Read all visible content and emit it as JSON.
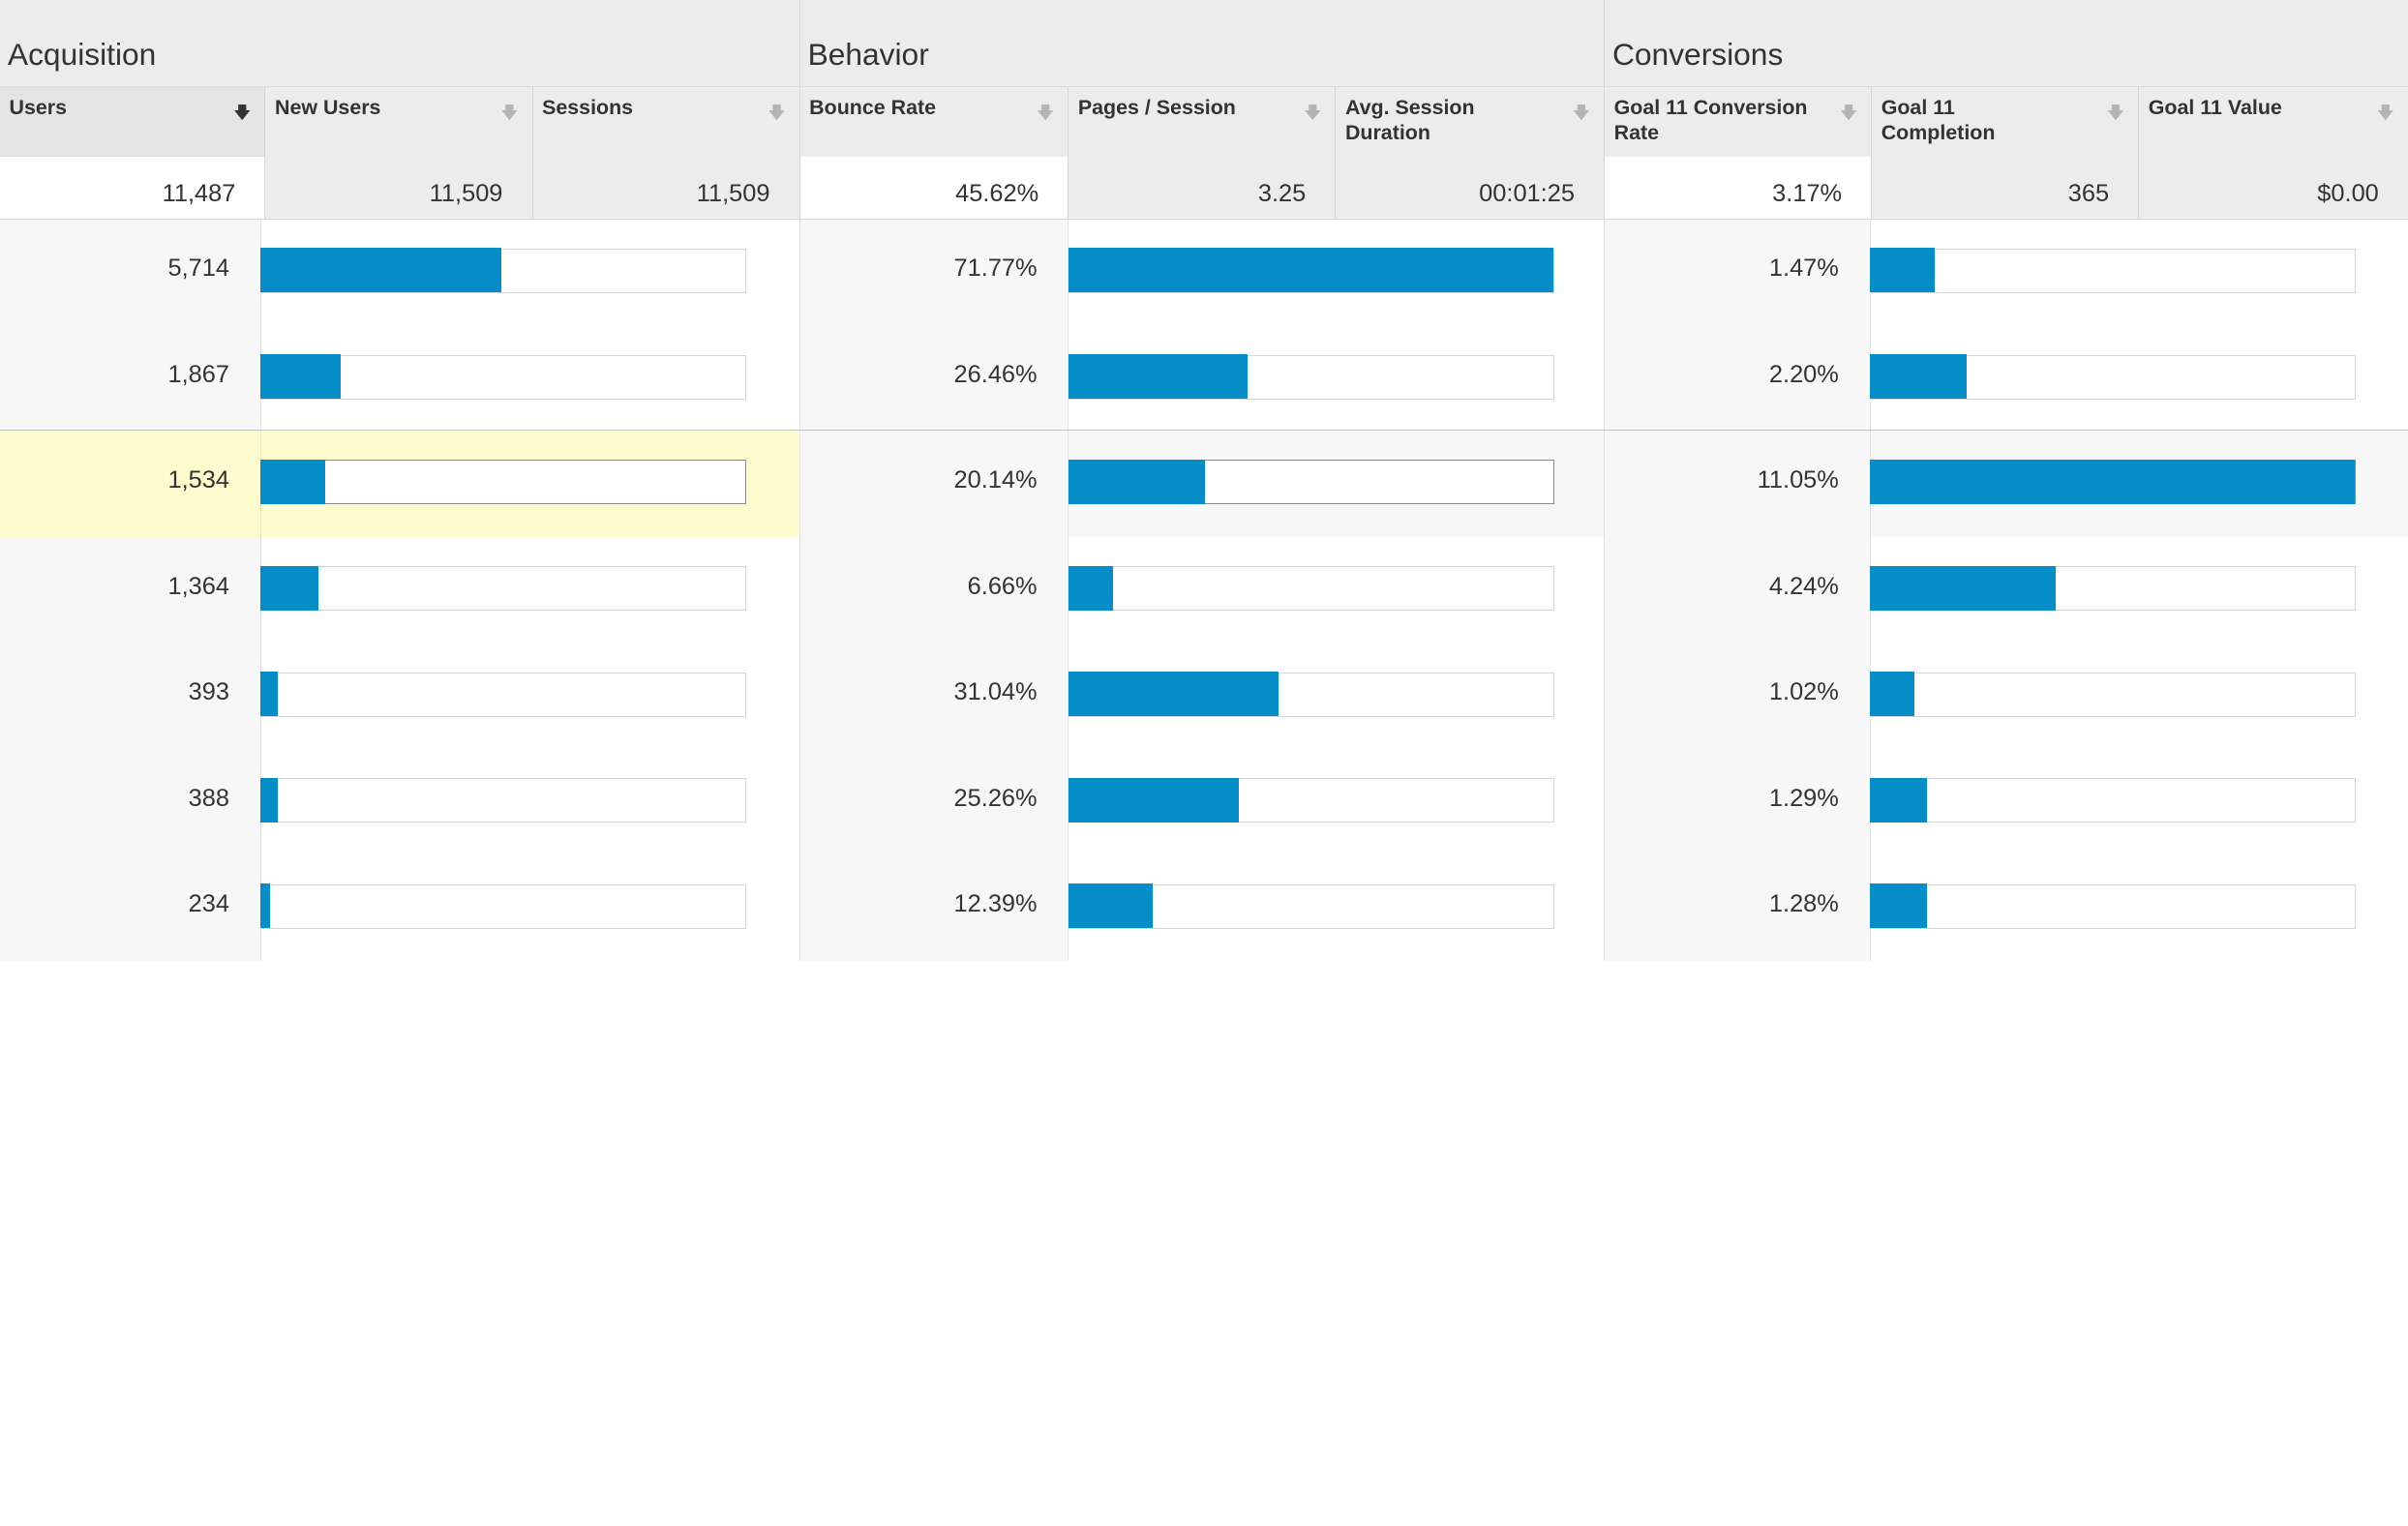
{
  "groups": {
    "acquisition": "Acquisition",
    "behavior": "Behavior",
    "conversions": "Conversions"
  },
  "columns": {
    "users": "Users",
    "new_users": "New Users",
    "sessions": "Sessions",
    "bounce_rate": "Bounce Rate",
    "pages_session": "Pages / Session",
    "avg_session_duration": "Avg. Session Duration",
    "goal_conv_rate": "Goal 11 Conversion Rate",
    "goal_completion": "Goal 11 Completion",
    "goal_value": "Goal 11 Value"
  },
  "sort_icon": "sort-arrow-down-icon",
  "totals": {
    "users": "11,487",
    "new_users": "11,509",
    "sessions": "11,509",
    "bounce_rate": "45.62%",
    "pages_session": "3.25",
    "avg_session_duration": "00:01:25",
    "goal_conv_rate": "3.17%",
    "goal_completion": "365",
    "goal_value": "$0.00"
  },
  "rows": [
    {
      "users": "5,714",
      "users_bar": 0.497,
      "bounce_rate": "71.77%",
      "bounce_bar": 1.0,
      "conv_rate": "1.47%",
      "conv_bar": 0.133
    },
    {
      "users": "1,867",
      "users_bar": 0.163,
      "bounce_rate": "26.46%",
      "bounce_bar": 0.369,
      "conv_rate": "2.20%",
      "conv_bar": 0.199
    },
    {
      "users": "1,534",
      "users_bar": 0.134,
      "bounce_rate": "20.14%",
      "bounce_bar": 0.281,
      "conv_rate": "11.05%",
      "conv_bar": 1.0
    },
    {
      "users": "1,364",
      "users_bar": 0.119,
      "bounce_rate": "6.66%",
      "bounce_bar": 0.093,
      "conv_rate": "4.24%",
      "conv_bar": 0.384
    },
    {
      "users": "393",
      "users_bar": 0.034,
      "bounce_rate": "31.04%",
      "bounce_bar": 0.432,
      "conv_rate": "1.02%",
      "conv_bar": 0.092
    },
    {
      "users": "388",
      "users_bar": 0.034,
      "bounce_rate": "25.26%",
      "bounce_bar": 0.352,
      "conv_rate": "1.29%",
      "conv_bar": 0.117
    },
    {
      "users": "234",
      "users_bar": 0.02,
      "bounce_rate": "12.39%",
      "bounce_bar": 0.173,
      "conv_rate": "1.28%",
      "conv_bar": 0.116
    }
  ],
  "colors": {
    "bar": "#058dc7",
    "highlight": "#fefccf",
    "header_bg": "#ececec"
  }
}
